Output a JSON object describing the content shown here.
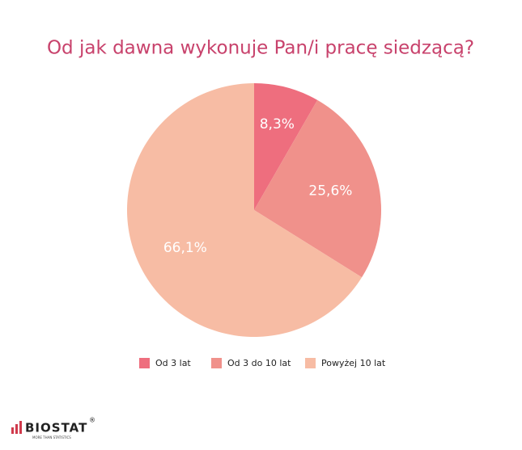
{
  "chart_data": {
    "type": "pie",
    "title": "Od jak dawna wykonuje Pan/i pracę siedzącą?",
    "categories": [
      "Od 3 lat",
      "Od 3 do 10 lat",
      "Powyżej 10 lat"
    ],
    "values": [
      8.3,
      25.6,
      66.1
    ],
    "value_labels": [
      "8,3%",
      "25,6%",
      "66,1%"
    ],
    "colors": [
      "#ee6e7e",
      "#f0918b",
      "#f7bca4"
    ],
    "legend": "bottom"
  },
  "logo": {
    "name": "BIOSTAT",
    "mark": "®",
    "tagline": "MORE THAN STATISTICS"
  }
}
